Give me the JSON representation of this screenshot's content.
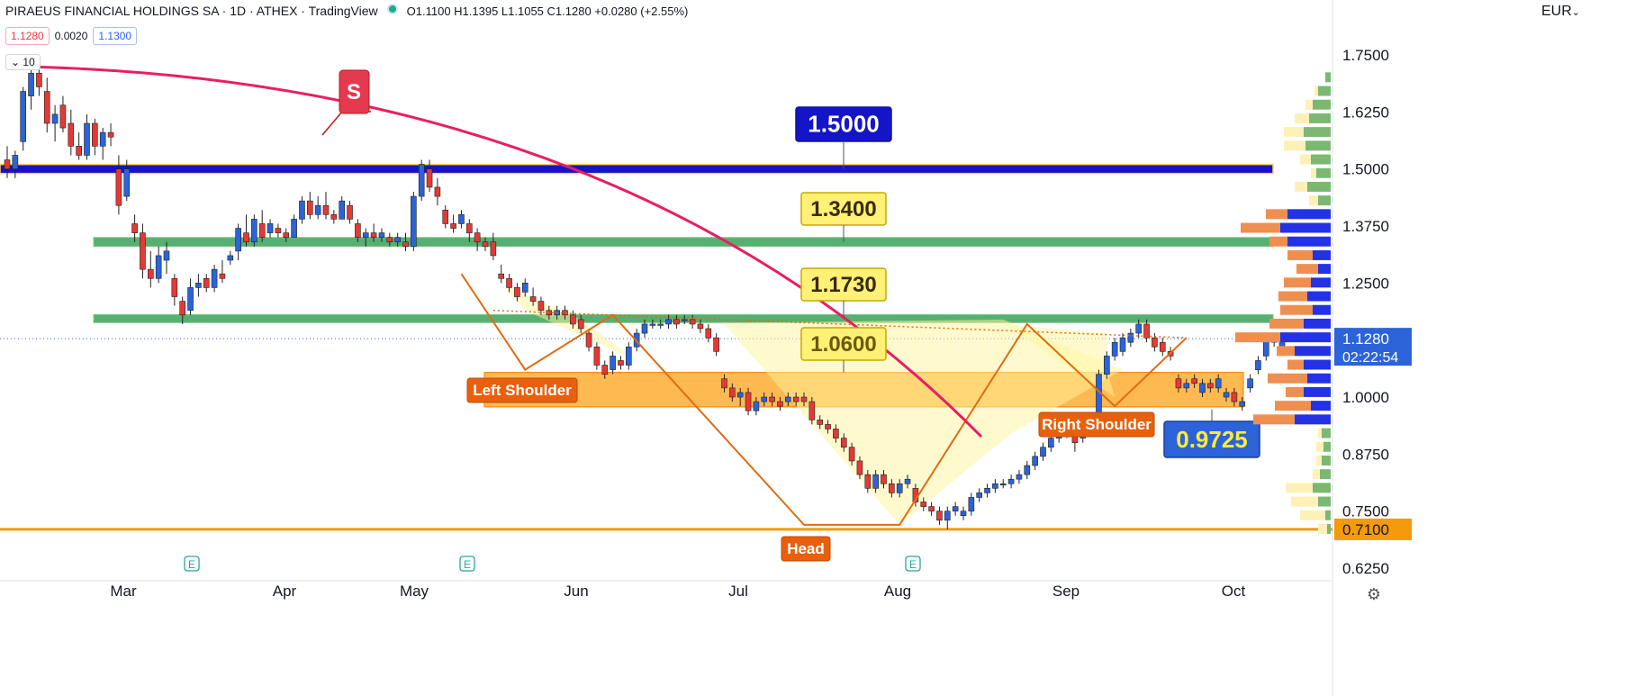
{
  "header": {
    "symbol": "PIRAEUS FINANCIAL HOLDINGS SA · 1D · ATHEX · TradingView",
    "ohlc": "O1.1100 H1.1395 L1.1055 C1.1280 +0.0280 (+2.55%)",
    "bid": "1.1280",
    "spread": "0.0020",
    "ask": "1.1300",
    "volume_chip": "10",
    "currency": "EUR"
  },
  "colors": {
    "up": "#2d63d8",
    "down": "#e53935",
    "blue_band": "#1414c8",
    "green_band": "#3aa15a",
    "orange_zone": "#ffa726",
    "pattern_line": "#e06c12",
    "pattern_fill": "#fff59d",
    "red_curve": "#e91e63"
  },
  "chart_data": {
    "type": "candlestick",
    "x_axis_labels": [
      "Mar",
      "Apr",
      "May",
      "Jun",
      "Jul",
      "Aug",
      "Sep",
      "Oct"
    ],
    "y_axis_labels": [
      "1.7500",
      "1.6250",
      "1.5000",
      "1.3750",
      "1.2500",
      "1.0000",
      "0.8750",
      "0.7500",
      "0.6250"
    ],
    "ylim": [
      0.6,
      1.8
    ],
    "last_price": "1.1280",
    "countdown": "02:22:54",
    "levels": [
      {
        "label": "1.5000",
        "price": 1.5,
        "kind": "blue-band"
      },
      {
        "label": "1.3400",
        "price": 1.34,
        "kind": "green-band"
      },
      {
        "label": "1.1730",
        "price": 1.173,
        "kind": "green-band"
      },
      {
        "label": "1.0600",
        "price": 1.06,
        "kind": "zone-top"
      },
      {
        "label": "0.9725",
        "price": 0.9725,
        "kind": "zone-bottom"
      },
      {
        "label": "0.7100",
        "price": 0.71,
        "kind": "support-line"
      }
    ],
    "annotations": {
      "signal": "S",
      "left_shoulder": "Left Shoulder",
      "head": "Head",
      "right_shoulder": "Right Shoulder",
      "earnings": "E"
    },
    "ohlc": [
      [
        1.52,
        1.55,
        1.48,
        1.5
      ],
      [
        1.5,
        1.54,
        1.48,
        1.53
      ],
      [
        1.56,
        1.68,
        1.54,
        1.67
      ],
      [
        1.66,
        1.73,
        1.63,
        1.71
      ],
      [
        1.71,
        1.74,
        1.66,
        1.68
      ],
      [
        1.67,
        1.7,
        1.58,
        1.6
      ],
      [
        1.6,
        1.64,
        1.56,
        1.62
      ],
      [
        1.64,
        1.66,
        1.58,
        1.59
      ],
      [
        1.6,
        1.63,
        1.53,
        1.55
      ],
      [
        1.55,
        1.58,
        1.52,
        1.53
      ],
      [
        1.53,
        1.62,
        1.52,
        1.6
      ],
      [
        1.6,
        1.61,
        1.53,
        1.55
      ],
      [
        1.55,
        1.59,
        1.52,
        1.58
      ],
      [
        1.58,
        1.6,
        1.55,
        1.57
      ],
      [
        1.5,
        1.53,
        1.4,
        1.42
      ],
      [
        1.44,
        1.52,
        1.43,
        1.5
      ],
      [
        1.38,
        1.4,
        1.34,
        1.36
      ],
      [
        1.36,
        1.38,
        1.26,
        1.28
      ],
      [
        1.28,
        1.32,
        1.24,
        1.26
      ],
      [
        1.26,
        1.33,
        1.25,
        1.31
      ],
      [
        1.3,
        1.34,
        1.27,
        1.32
      ],
      [
        1.26,
        1.27,
        1.2,
        1.22
      ],
      [
        1.21,
        1.22,
        1.16,
        1.18
      ],
      [
        1.19,
        1.26,
        1.18,
        1.24
      ],
      [
        1.24,
        1.27,
        1.22,
        1.25
      ],
      [
        1.26,
        1.27,
        1.23,
        1.24
      ],
      [
        1.24,
        1.29,
        1.23,
        1.28
      ],
      [
        1.27,
        1.3,
        1.25,
        1.26
      ],
      [
        1.3,
        1.32,
        1.29,
        1.31
      ],
      [
        1.32,
        1.38,
        1.3,
        1.37
      ],
      [
        1.36,
        1.4,
        1.33,
        1.34
      ],
      [
        1.34,
        1.4,
        1.33,
        1.39
      ],
      [
        1.38,
        1.41,
        1.34,
        1.35
      ],
      [
        1.36,
        1.39,
        1.35,
        1.38
      ],
      [
        1.37,
        1.38,
        1.35,
        1.36
      ],
      [
        1.36,
        1.37,
        1.34,
        1.35
      ],
      [
        1.35,
        1.4,
        1.35,
        1.39
      ],
      [
        1.39,
        1.44,
        1.38,
        1.43
      ],
      [
        1.43,
        1.45,
        1.39,
        1.4
      ],
      [
        1.4,
        1.44,
        1.39,
        1.42
      ],
      [
        1.42,
        1.45,
        1.39,
        1.4
      ],
      [
        1.4,
        1.41,
        1.38,
        1.39
      ],
      [
        1.39,
        1.44,
        1.39,
        1.43
      ],
      [
        1.42,
        1.43,
        1.38,
        1.39
      ],
      [
        1.38,
        1.39,
        1.34,
        1.35
      ],
      [
        1.35,
        1.37,
        1.33,
        1.36
      ],
      [
        1.36,
        1.38,
        1.34,
        1.35
      ],
      [
        1.35,
        1.37,
        1.34,
        1.36
      ],
      [
        1.35,
        1.36,
        1.33,
        1.34
      ],
      [
        1.34,
        1.36,
        1.33,
        1.35
      ],
      [
        1.34,
        1.36,
        1.32,
        1.33
      ],
      [
        1.33,
        1.45,
        1.32,
        1.44
      ],
      [
        1.44,
        1.52,
        1.43,
        1.51
      ],
      [
        1.5,
        1.52,
        1.45,
        1.46
      ],
      [
        1.46,
        1.48,
        1.42,
        1.44
      ],
      [
        1.41,
        1.42,
        1.37,
        1.38
      ],
      [
        1.38,
        1.4,
        1.36,
        1.37
      ],
      [
        1.38,
        1.41,
        1.37,
        1.4
      ],
      [
        1.38,
        1.39,
        1.34,
        1.36
      ],
      [
        1.36,
        1.37,
        1.32,
        1.34
      ],
      [
        1.34,
        1.35,
        1.32,
        1.33
      ],
      [
        1.34,
        1.36,
        1.3,
        1.31
      ],
      [
        1.27,
        1.29,
        1.25,
        1.26
      ],
      [
        1.26,
        1.27,
        1.23,
        1.24
      ],
      [
        1.24,
        1.25,
        1.21,
        1.22
      ],
      [
        1.23,
        1.26,
        1.22,
        1.25
      ],
      [
        1.22,
        1.24,
        1.2,
        1.21
      ],
      [
        1.21,
        1.22,
        1.18,
        1.19
      ],
      [
        1.19,
        1.2,
        1.17,
        1.18
      ],
      [
        1.18,
        1.2,
        1.17,
        1.19
      ],
      [
        1.19,
        1.2,
        1.17,
        1.18
      ],
      [
        1.18,
        1.19,
        1.15,
        1.16
      ],
      [
        1.17,
        1.18,
        1.14,
        1.15
      ],
      [
        1.14,
        1.15,
        1.1,
        1.11
      ],
      [
        1.11,
        1.12,
        1.06,
        1.07
      ],
      [
        1.07,
        1.08,
        1.04,
        1.05
      ],
      [
        1.06,
        1.1,
        1.05,
        1.09
      ],
      [
        1.08,
        1.09,
        1.06,
        1.07
      ],
      [
        1.07,
        1.12,
        1.06,
        1.11
      ],
      [
        1.11,
        1.15,
        1.1,
        1.14
      ],
      [
        1.14,
        1.17,
        1.13,
        1.16
      ],
      [
        1.16,
        1.17,
        1.15,
        1.16
      ],
      [
        1.16,
        1.17,
        1.15,
        1.16
      ],
      [
        1.16,
        1.18,
        1.15,
        1.17
      ],
      [
        1.17,
        1.18,
        1.15,
        1.16
      ],
      [
        1.17,
        1.18,
        1.16,
        1.17
      ],
      [
        1.17,
        1.18,
        1.15,
        1.16
      ],
      [
        1.16,
        1.17,
        1.14,
        1.15
      ],
      [
        1.15,
        1.16,
        1.12,
        1.13
      ],
      [
        1.13,
        1.14,
        1.09,
        1.1
      ],
      [
        1.04,
        1.05,
        1.01,
        1.02
      ],
      [
        1.02,
        1.03,
        0.99,
        1.0
      ],
      [
        1.0,
        1.02,
        0.98,
        1.01
      ],
      [
        1.01,
        1.02,
        0.96,
        0.97
      ],
      [
        0.97,
        1.0,
        0.96,
        0.99
      ],
      [
        0.99,
        1.01,
        0.98,
        1.0
      ],
      [
        1.0,
        1.01,
        0.98,
        0.99
      ],
      [
        0.99,
        1.0,
        0.97,
        0.98
      ],
      [
        0.99,
        1.01,
        0.98,
        1.0
      ],
      [
        1.0,
        1.01,
        0.98,
        0.99
      ],
      [
        1.0,
        1.01,
        0.98,
        0.99
      ],
      [
        0.99,
        1.0,
        0.94,
        0.95
      ],
      [
        0.95,
        0.96,
        0.93,
        0.94
      ],
      [
        0.94,
        0.95,
        0.92,
        0.93
      ],
      [
        0.93,
        0.94,
        0.9,
        0.91
      ],
      [
        0.91,
        0.92,
        0.88,
        0.89
      ],
      [
        0.89,
        0.9,
        0.85,
        0.86
      ],
      [
        0.86,
        0.87,
        0.82,
        0.83
      ],
      [
        0.83,
        0.84,
        0.79,
        0.8
      ],
      [
        0.8,
        0.84,
        0.79,
        0.83
      ],
      [
        0.83,
        0.84,
        0.8,
        0.81
      ],
      [
        0.81,
        0.82,
        0.78,
        0.79
      ],
      [
        0.79,
        0.82,
        0.78,
        0.81
      ],
      [
        0.81,
        0.83,
        0.8,
        0.82
      ],
      [
        0.8,
        0.81,
        0.76,
        0.77
      ],
      [
        0.77,
        0.78,
        0.75,
        0.76
      ],
      [
        0.76,
        0.77,
        0.74,
        0.75
      ],
      [
        0.75,
        0.76,
        0.72,
        0.73
      ],
      [
        0.73,
        0.76,
        0.71,
        0.75
      ],
      [
        0.75,
        0.77,
        0.74,
        0.76
      ],
      [
        0.74,
        0.76,
        0.73,
        0.75
      ],
      [
        0.75,
        0.79,
        0.74,
        0.78
      ],
      [
        0.78,
        0.8,
        0.77,
        0.79
      ],
      [
        0.79,
        0.81,
        0.78,
        0.8
      ],
      [
        0.8,
        0.82,
        0.79,
        0.81
      ],
      [
        0.81,
        0.82,
        0.8,
        0.81
      ],
      [
        0.81,
        0.83,
        0.8,
        0.82
      ],
      [
        0.82,
        0.84,
        0.81,
        0.83
      ],
      [
        0.83,
        0.86,
        0.82,
        0.85
      ],
      [
        0.85,
        0.88,
        0.84,
        0.87
      ],
      [
        0.87,
        0.9,
        0.86,
        0.89
      ],
      [
        0.89,
        0.92,
        0.88,
        0.91
      ],
      [
        0.91,
        0.93,
        0.9,
        0.92
      ],
      [
        0.92,
        0.94,
        0.91,
        0.93
      ],
      [
        0.95,
        0.96,
        0.88,
        0.9
      ],
      [
        0.91,
        0.95,
        0.9,
        0.94
      ],
      [
        0.94,
        0.96,
        0.93,
        0.95
      ],
      [
        0.95,
        1.06,
        0.94,
        1.05
      ],
      [
        1.05,
        1.1,
        1.04,
        1.09
      ],
      [
        1.09,
        1.13,
        1.08,
        1.12
      ],
      [
        1.1,
        1.14,
        1.09,
        1.13
      ],
      [
        1.12,
        1.15,
        1.11,
        1.14
      ],
      [
        1.14,
        1.17,
        1.13,
        1.16
      ],
      [
        1.16,
        1.17,
        1.12,
        1.13
      ],
      [
        1.13,
        1.14,
        1.1,
        1.11
      ],
      [
        1.12,
        1.13,
        1.09,
        1.1
      ],
      [
        1.1,
        1.11,
        1.08,
        1.09
      ],
      [
        1.04,
        1.05,
        1.01,
        1.02
      ],
      [
        1.02,
        1.04,
        1.01,
        1.03
      ],
      [
        1.04,
        1.05,
        1.02,
        1.03
      ],
      [
        1.01,
        1.04,
        1.0,
        1.03
      ],
      [
        1.03,
        1.04,
        1.01,
        1.02
      ],
      [
        1.02,
        1.05,
        1.01,
        1.04
      ],
      [
        1.0,
        1.02,
        0.99,
        1.01
      ],
      [
        1.01,
        1.02,
        0.98,
        0.99
      ],
      [
        0.98,
        1.0,
        0.97,
        0.99
      ],
      [
        1.02,
        1.05,
        1.01,
        1.04
      ],
      [
        1.06,
        1.09,
        1.05,
        1.08
      ],
      [
        1.09,
        1.14,
        1.08,
        1.13
      ],
      [
        1.13,
        1.14,
        1.11,
        1.12
      ],
      [
        1.11,
        1.14,
        1.1,
        1.13
      ]
    ],
    "volume_profile": [
      {
        "price": 1.7,
        "buy": 6,
        "sell": 0
      },
      {
        "price": 1.67,
        "buy": 14,
        "sell": 4
      },
      {
        "price": 1.64,
        "buy": 20,
        "sell": 8
      },
      {
        "price": 1.61,
        "buy": 24,
        "sell": 16
      },
      {
        "price": 1.58,
        "buy": 30,
        "sell": 22
      },
      {
        "price": 1.55,
        "buy": 28,
        "sell": 24
      },
      {
        "price": 1.52,
        "buy": 22,
        "sell": 12
      },
      {
        "price": 1.49,
        "buy": 16,
        "sell": 6
      },
      {
        "price": 1.46,
        "buy": 26,
        "sell": 14
      },
      {
        "price": 1.43,
        "buy": 14,
        "sell": 10
      },
      {
        "price": 1.4,
        "buy": 48,
        "sell": 24
      },
      {
        "price": 1.37,
        "buy": 56,
        "sell": 44
      },
      {
        "price": 1.34,
        "buy": 48,
        "sell": 20
      },
      {
        "price": 1.31,
        "buy": 20,
        "sell": 28
      },
      {
        "price": 1.28,
        "buy": 14,
        "sell": 24
      },
      {
        "price": 1.25,
        "buy": 22,
        "sell": 30
      },
      {
        "price": 1.22,
        "buy": 26,
        "sell": 32
      },
      {
        "price": 1.19,
        "buy": 20,
        "sell": 36
      },
      {
        "price": 1.16,
        "buy": 30,
        "sell": 38
      },
      {
        "price": 1.13,
        "buy": 56,
        "sell": 50
      },
      {
        "price": 1.1,
        "buy": 40,
        "sell": 20
      },
      {
        "price": 1.07,
        "buy": 30,
        "sell": 18
      },
      {
        "price": 1.04,
        "buy": 26,
        "sell": 44
      },
      {
        "price": 1.01,
        "buy": 30,
        "sell": 20
      },
      {
        "price": 0.98,
        "buy": 22,
        "sell": 40
      },
      {
        "price": 0.95,
        "buy": 40,
        "sell": 46
      },
      {
        "price": 0.92,
        "buy": 10,
        "sell": 4
      },
      {
        "price": 0.89,
        "buy": 8,
        "sell": 8
      },
      {
        "price": 0.86,
        "buy": 10,
        "sell": 6
      },
      {
        "price": 0.83,
        "buy": 12,
        "sell": 8
      },
      {
        "price": 0.8,
        "buy": 20,
        "sell": 30
      },
      {
        "price": 0.77,
        "buy": 14,
        "sell": 30
      },
      {
        "price": 0.74,
        "buy": 6,
        "sell": 28
      },
      {
        "price": 0.71,
        "buy": 4,
        "sell": 10
      }
    ]
  }
}
